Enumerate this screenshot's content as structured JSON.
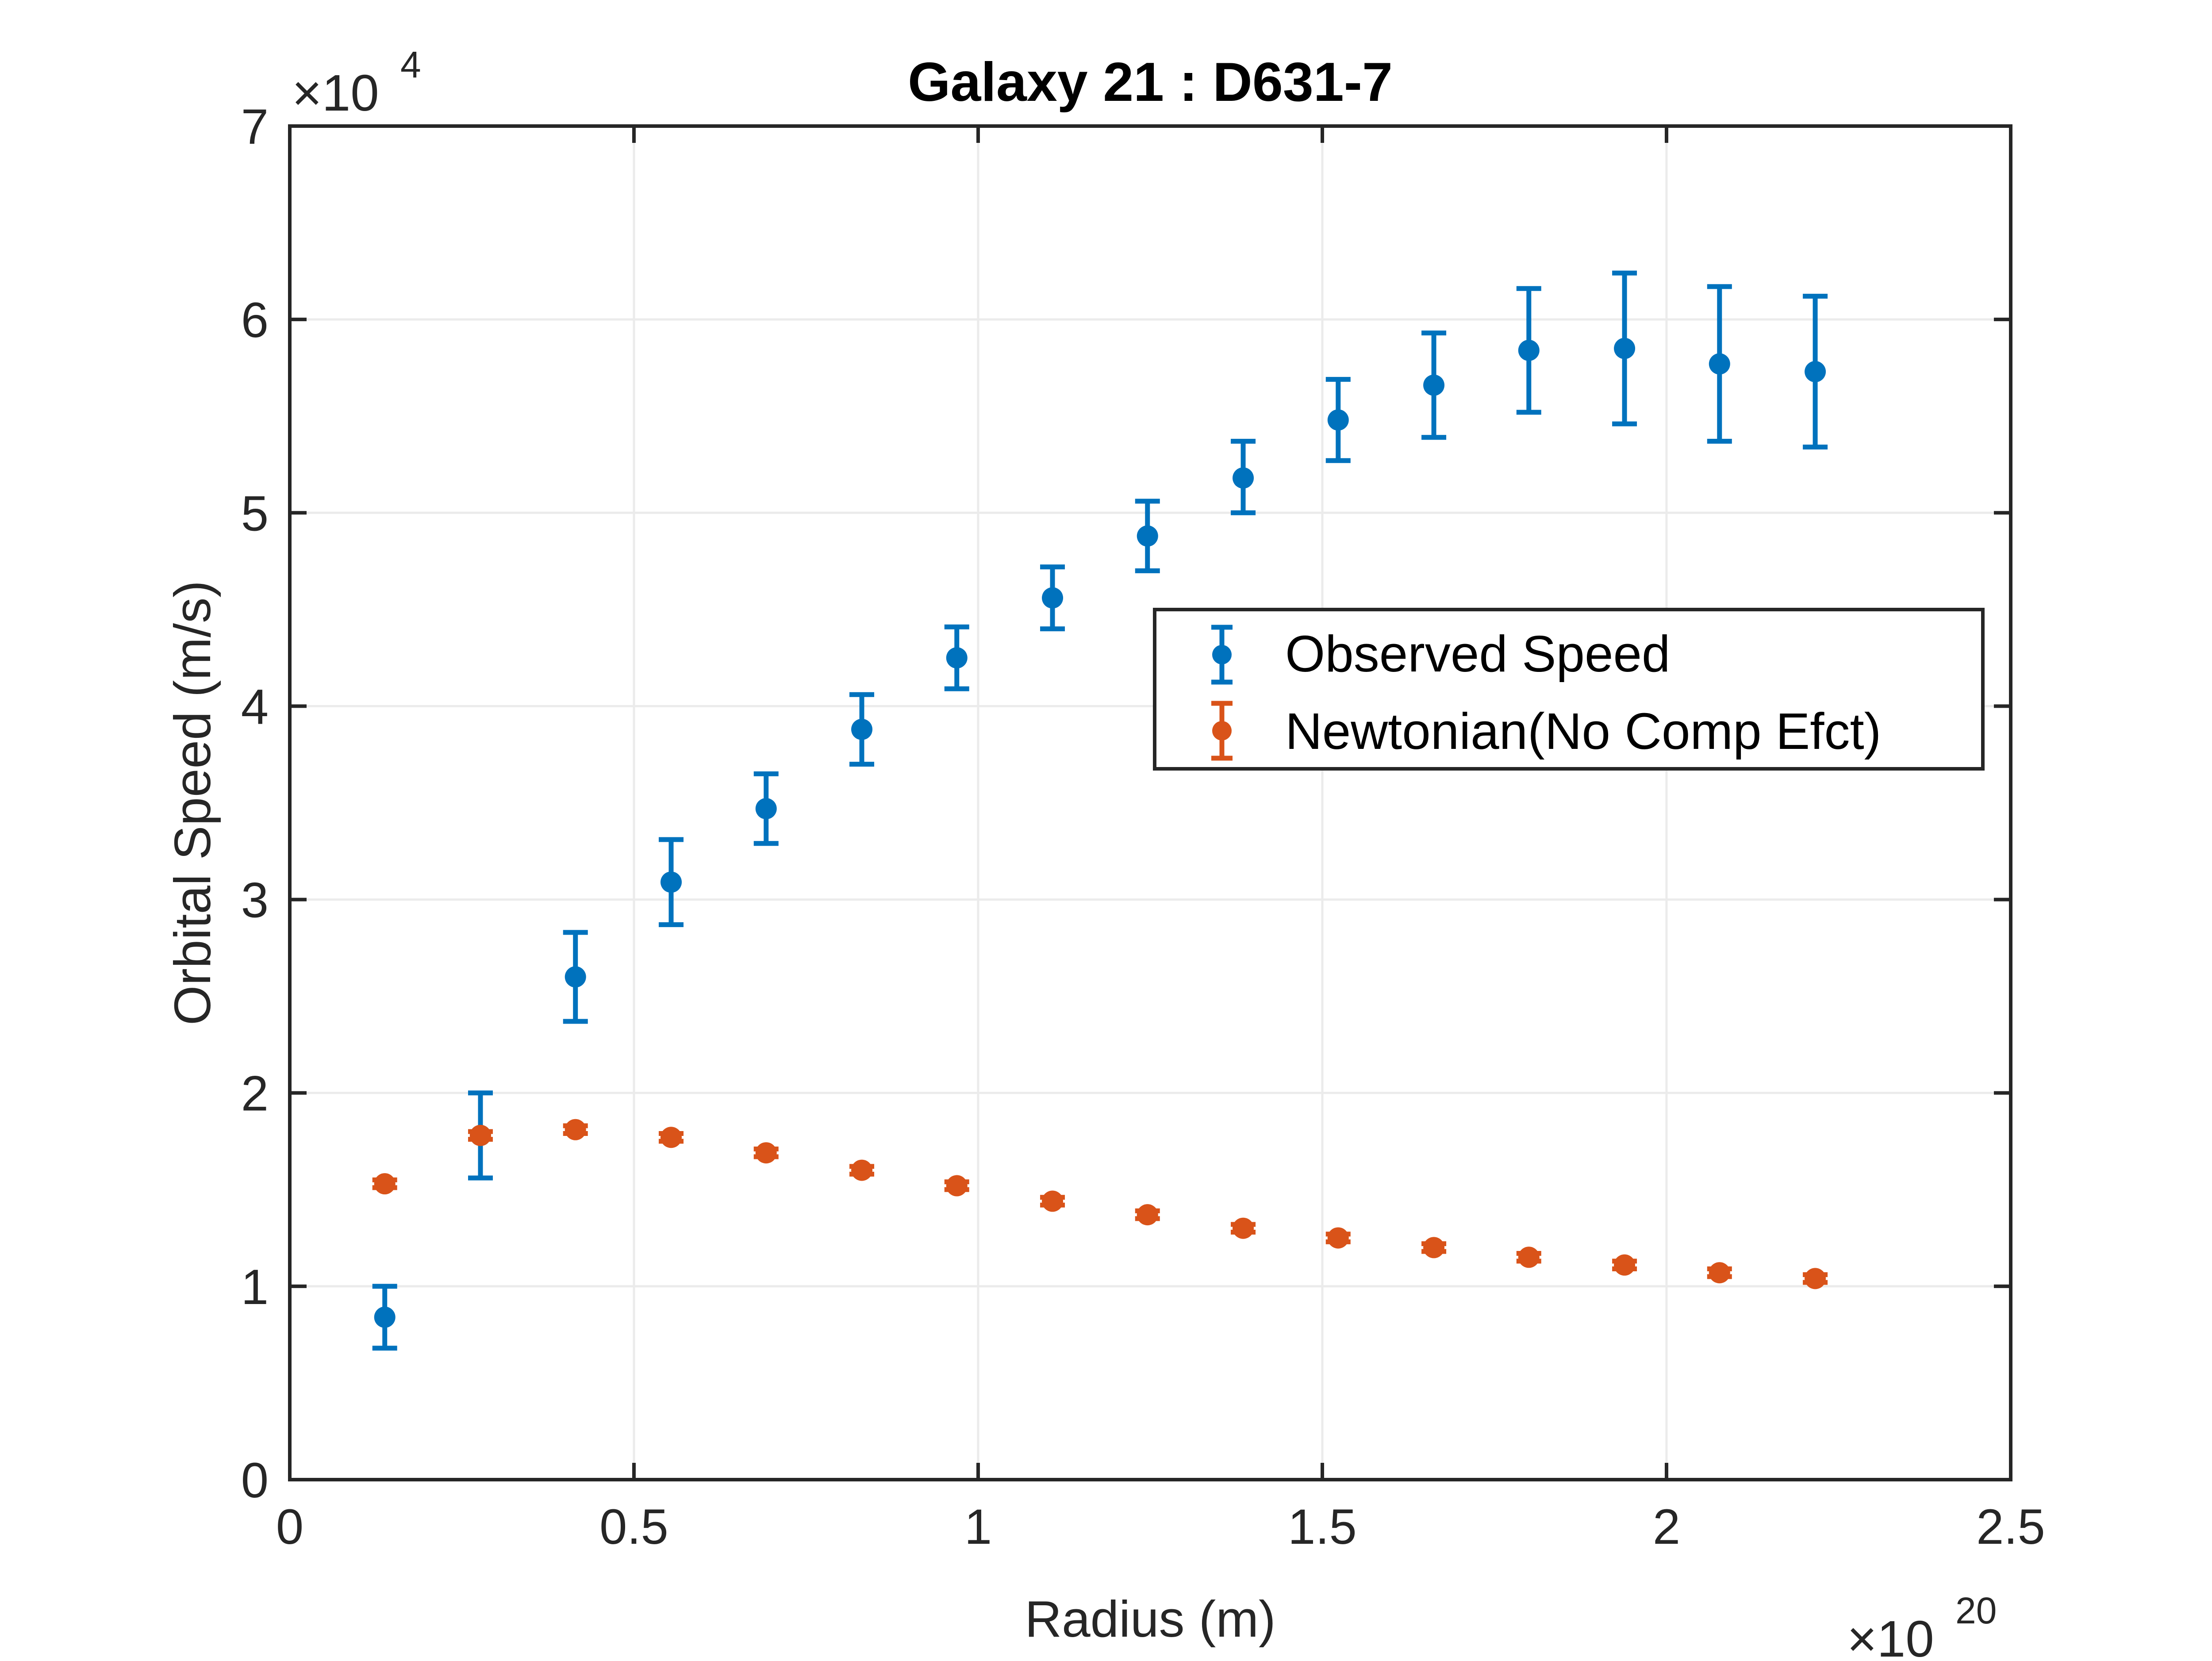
{
  "chart_data": {
    "type": "scatter",
    "title": "Galaxy 21 : D631-7",
    "xlabel": "Radius (m)",
    "ylabel": "Orbital Speed (m/s)",
    "xlim": [
      0,
      2.5
    ],
    "ylim": [
      0,
      7
    ],
    "x_exponent_label": "×10",
    "x_exponent": "20",
    "y_exponent_label": "×10",
    "y_exponent": "4",
    "x_ticks": [
      0,
      0.5,
      1,
      1.5,
      2,
      2.5
    ],
    "x_tick_labels": [
      "0",
      "0.5",
      "1",
      "1.5",
      "2",
      "2.5"
    ],
    "y_ticks": [
      0,
      1,
      2,
      3,
      4,
      5,
      6,
      7
    ],
    "y_tick_labels": [
      "0",
      "1",
      "2",
      "3",
      "4",
      "5",
      "6",
      "7"
    ],
    "grid": true,
    "legend_position": "right-middle",
    "series": [
      {
        "name": "Observed Speed",
        "color": "#0072BD",
        "points": [
          {
            "x": 0.138,
            "y": 0.84,
            "lo": 0.68,
            "hi": 1.0
          },
          {
            "x": 0.277,
            "y": 1.78,
            "lo": 1.56,
            "hi": 2.0
          },
          {
            "x": 0.415,
            "y": 2.6,
            "lo": 2.37,
            "hi": 2.83
          },
          {
            "x": 0.554,
            "y": 3.09,
            "lo": 2.87,
            "hi": 3.31
          },
          {
            "x": 0.692,
            "y": 3.47,
            "lo": 3.29,
            "hi": 3.65
          },
          {
            "x": 0.831,
            "y": 3.88,
            "lo": 3.7,
            "hi": 4.06
          },
          {
            "x": 0.969,
            "y": 4.25,
            "lo": 4.09,
            "hi": 4.41
          },
          {
            "x": 1.108,
            "y": 4.56,
            "lo": 4.4,
            "hi": 4.72
          },
          {
            "x": 1.246,
            "y": 4.88,
            "lo": 4.7,
            "hi": 5.06
          },
          {
            "x": 1.385,
            "y": 5.18,
            "lo": 5.0,
            "hi": 5.37
          },
          {
            "x": 1.523,
            "y": 5.48,
            "lo": 5.27,
            "hi": 5.69
          },
          {
            "x": 1.662,
            "y": 5.66,
            "lo": 5.39,
            "hi": 5.93
          },
          {
            "x": 1.8,
            "y": 5.84,
            "lo": 5.52,
            "hi": 6.16
          },
          {
            "x": 1.939,
            "y": 5.85,
            "lo": 5.46,
            "hi": 6.24
          },
          {
            "x": 2.077,
            "y": 5.77,
            "lo": 5.37,
            "hi": 6.17
          },
          {
            "x": 2.216,
            "y": 5.73,
            "lo": 5.34,
            "hi": 6.12
          }
        ]
      },
      {
        "name": "Newtonian(No Comp Efct)",
        "color": "#D95319",
        "points": [
          {
            "x": 0.138,
            "y": 1.53,
            "lo": 1.51,
            "hi": 1.55
          },
          {
            "x": 0.277,
            "y": 1.78,
            "lo": 1.76,
            "hi": 1.8
          },
          {
            "x": 0.415,
            "y": 1.81,
            "lo": 1.79,
            "hi": 1.83
          },
          {
            "x": 0.554,
            "y": 1.77,
            "lo": 1.75,
            "hi": 1.79
          },
          {
            "x": 0.692,
            "y": 1.69,
            "lo": 1.67,
            "hi": 1.71
          },
          {
            "x": 0.831,
            "y": 1.6,
            "lo": 1.58,
            "hi": 1.62
          },
          {
            "x": 0.969,
            "y": 1.52,
            "lo": 1.5,
            "hi": 1.54
          },
          {
            "x": 1.108,
            "y": 1.44,
            "lo": 1.42,
            "hi": 1.46
          },
          {
            "x": 1.246,
            "y": 1.37,
            "lo": 1.35,
            "hi": 1.39
          },
          {
            "x": 1.385,
            "y": 1.3,
            "lo": 1.28,
            "hi": 1.32
          },
          {
            "x": 1.523,
            "y": 1.25,
            "lo": 1.23,
            "hi": 1.27
          },
          {
            "x": 1.662,
            "y": 1.2,
            "lo": 1.18,
            "hi": 1.22
          },
          {
            "x": 1.8,
            "y": 1.15,
            "lo": 1.13,
            "hi": 1.17
          },
          {
            "x": 1.939,
            "y": 1.11,
            "lo": 1.09,
            "hi": 1.13
          },
          {
            "x": 2.077,
            "y": 1.07,
            "lo": 1.05,
            "hi": 1.09
          },
          {
            "x": 2.216,
            "y": 1.04,
            "lo": 1.02,
            "hi": 1.06
          }
        ]
      }
    ]
  }
}
